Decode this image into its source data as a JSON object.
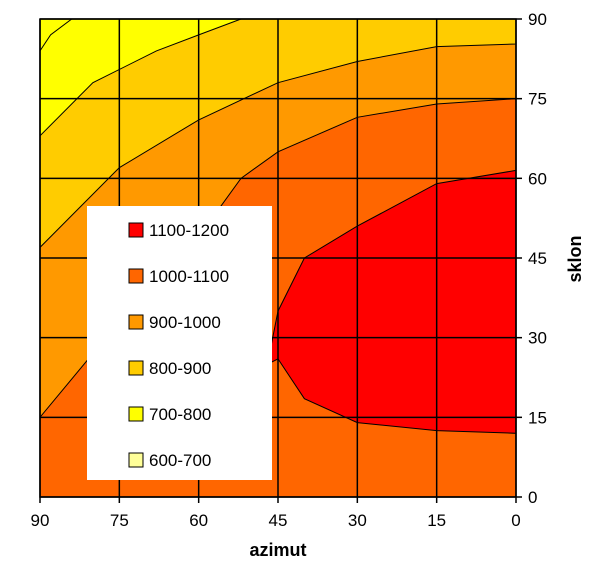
{
  "chart_data": {
    "type": "heatmap",
    "subtype": "filled-contour",
    "title": "",
    "xlabel": "azimut",
    "ylabel": "sklon",
    "x_reversed": true,
    "xlim": [
      90,
      0
    ],
    "ylim": [
      0,
      90
    ],
    "x_ticks": [
      "90",
      "75",
      "60",
      "45",
      "30",
      "15",
      "0"
    ],
    "y_ticks": [
      "0",
      "15",
      "30",
      "45",
      "60",
      "75",
      "90"
    ],
    "y_axis_position": "right",
    "grid": true,
    "levels": [
      {
        "name": "1100-1200",
        "color": "#ff0000"
      },
      {
        "name": "1000-1100",
        "color": "#ff6600"
      },
      {
        "name": "900-1000",
        "color": "#ff9900"
      },
      {
        "name": "800-900",
        "color": "#ffcc00"
      },
      {
        "name": "700-800",
        "color": "#ffff00"
      },
      {
        "name": "600-700",
        "color": "#ffff99"
      }
    ],
    "contours": [
      {
        "level": "800-900",
        "points": [
          [
            90,
            84
          ],
          [
            88,
            87
          ],
          [
            84,
            90
          ]
        ]
      },
      {
        "level": "900-1000",
        "points": [
          [
            90,
            68
          ],
          [
            80,
            78
          ],
          [
            68,
            84
          ],
          [
            60,
            87
          ],
          [
            52,
            90
          ]
        ]
      },
      {
        "level": "1000-1100",
        "points": [
          [
            90,
            47
          ],
          [
            75,
            62
          ],
          [
            60,
            71
          ],
          [
            45,
            78
          ],
          [
            30,
            82
          ],
          [
            15,
            84.8
          ],
          [
            0,
            85.3
          ]
        ]
      },
      {
        "level": "1100-1200",
        "points": [
          [
            90,
            15
          ],
          [
            75,
            33
          ],
          [
            60,
            49
          ],
          [
            52,
            60
          ],
          [
            45,
            65
          ],
          [
            30,
            71.5
          ],
          [
            15,
            74
          ],
          [
            0,
            75
          ]
        ]
      },
      {
        "level": "1100-1200-region",
        "points": [
          [
            47,
            25
          ],
          [
            45,
            35
          ],
          [
            40,
            45
          ],
          [
            30,
            51
          ],
          [
            15,
            59
          ],
          [
            0,
            61.5
          ],
          [
            0,
            12
          ],
          [
            15,
            12.5
          ],
          [
            30,
            14
          ],
          [
            40,
            18.5
          ],
          [
            45,
            26
          ]
        ]
      }
    ],
    "legend": {
      "position": "center-left",
      "entries": [
        "1100-1200",
        "1000-1100",
        "900-1000",
        "800-900",
        "700-800",
        "600-700"
      ]
    }
  }
}
